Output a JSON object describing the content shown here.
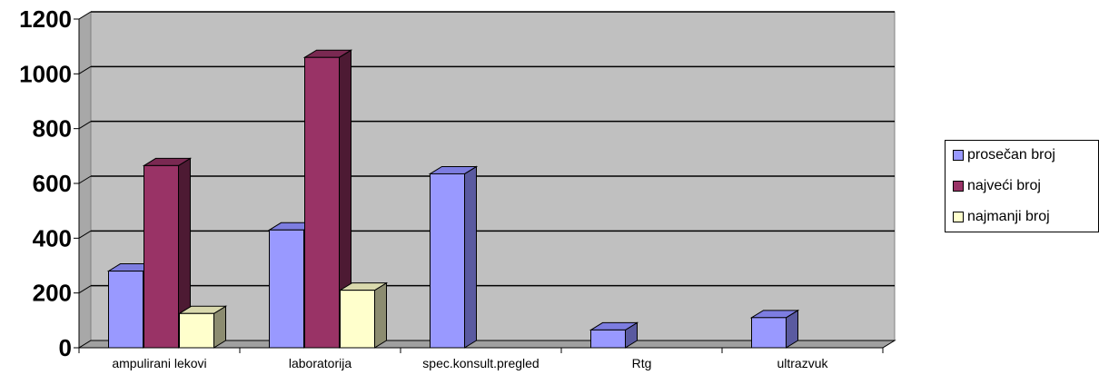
{
  "chart_data": {
    "type": "bar",
    "categories": [
      "ampulirani lekovi",
      "laboratorija",
      "spec.konsult.pregled",
      "Rtg",
      "ultrazvuk"
    ],
    "series": [
      {
        "name": "prosečan broj",
        "values": [
          280,
          430,
          635,
          65,
          110
        ],
        "color": "#9999ff",
        "side": "#5a5aa0",
        "top": "#7d7de0"
      },
      {
        "name": "najveći broj",
        "values": [
          665,
          1060,
          null,
          null,
          null
        ],
        "color": "#993366",
        "side": "#4d1a33",
        "top": "#7a2952"
      },
      {
        "name": "najmanji broj",
        "values": [
          125,
          210,
          null,
          null,
          null
        ],
        "color": "#ffffcc",
        "side": "#8c8c70",
        "top": "#d9d9ad"
      }
    ],
    "yticks": [
      0,
      200,
      400,
      600,
      800,
      1000,
      1200
    ],
    "ylim": [
      0,
      1200
    ],
    "grid": true,
    "legend": "right",
    "plot_background": "#c0c0c0"
  }
}
